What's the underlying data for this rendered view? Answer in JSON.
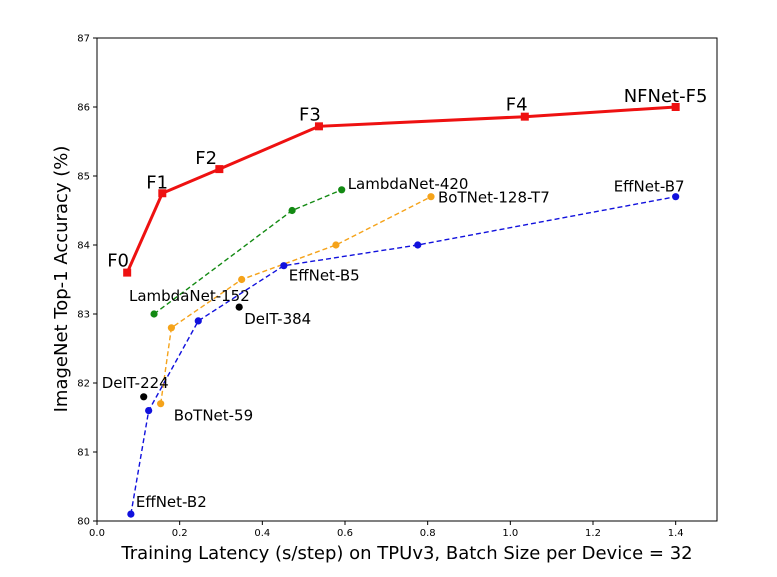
{
  "chart_data": {
    "type": "line",
    "xlabel": "Training Latency (s/step) on TPUv3, Batch Size per Device = 32",
    "ylabel": "ImageNet Top-1 Accuracy (%)",
    "xlim": [
      0.0,
      1.5
    ],
    "ylim": [
      80,
      87
    ],
    "x_ticks": [
      "0.0",
      "0.2",
      "0.4",
      "0.6",
      "0.8",
      "1.0",
      "1.2",
      "1.4"
    ],
    "y_ticks": [
      "80",
      "81",
      "82",
      "83",
      "84",
      "85",
      "86",
      "87"
    ],
    "grid": false,
    "series": [
      {
        "color": "#ee1111",
        "marker": "square",
        "style": "solid",
        "x": [
          0.073,
          0.158,
          0.296,
          0.537,
          1.035,
          1.4
        ],
        "y": [
          83.6,
          84.75,
          85.1,
          85.72,
          85.86,
          86.0
        ],
        "labels": [
          {
            "text": "F0",
            "idx": 0
          },
          {
            "text": "F1",
            "idx": 1
          },
          {
            "text": "F2",
            "idx": 2
          },
          {
            "text": "F3",
            "idx": 3
          },
          {
            "text": "F4",
            "idx": 4
          },
          {
            "text": "NFNet-F5",
            "idx": 5
          }
        ]
      },
      {
        "color": "#138a13",
        "marker": "circle",
        "style": "dashed",
        "x": [
          0.138,
          0.472,
          0.592
        ],
        "y": [
          83.0,
          84.5,
          84.8
        ],
        "labels": [
          {
            "text": "LambdaNet-152",
            "idx": 0
          },
          {
            "text": "LambdaNet-420",
            "idx": 2
          }
        ]
      },
      {
        "color": "#f5a31a",
        "marker": "circle",
        "style": "dashed",
        "x": [
          0.154,
          0.18,
          0.35,
          0.578,
          0.808
        ],
        "y": [
          81.7,
          82.8,
          83.5,
          84.0,
          84.7
        ],
        "labels": [
          {
            "text": "BoTNet-59",
            "idx": 0
          },
          {
            "text": "BoTNet-128-T7",
            "idx": 4
          }
        ]
      },
      {
        "color": "#1111dd",
        "marker": "circle",
        "style": "dashed",
        "x": [
          0.082,
          0.125,
          0.245,
          0.452,
          0.776,
          1.4
        ],
        "y": [
          80.1,
          81.6,
          82.9,
          83.7,
          84.0,
          84.7
        ],
        "labels": [
          {
            "text": "EffNet-B2",
            "idx": 0
          },
          {
            "text": "EffNet-B5",
            "idx": 3
          },
          {
            "text": "EffNet-B7",
            "idx": 5
          }
        ]
      },
      {
        "color": "#000000",
        "marker": "circle",
        "style": "none",
        "x": [
          0.113,
          0.344
        ],
        "y": [
          81.8,
          83.1
        ],
        "labels": [
          {
            "text": "DeIT-224",
            "idx": 0
          },
          {
            "text": "DeIT-384",
            "idx": 1
          }
        ]
      }
    ]
  }
}
